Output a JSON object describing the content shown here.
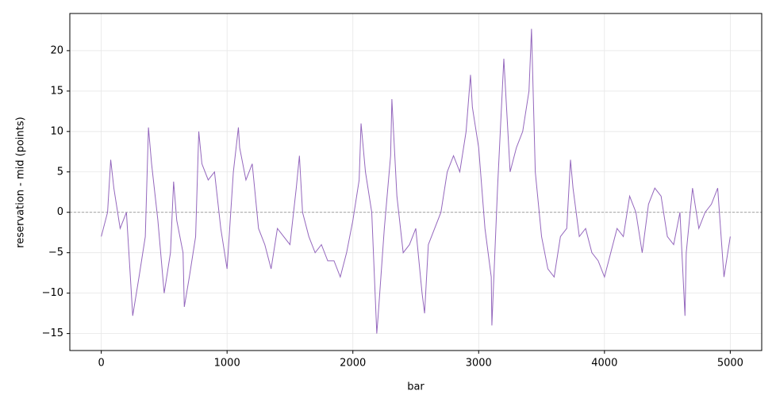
{
  "chart_data": {
    "type": "line",
    "xlabel": "bar",
    "ylabel": "reservation - mid (points)",
    "x": [
      0,
      50,
      75,
      100,
      150,
      200,
      250,
      300,
      350,
      375,
      400,
      450,
      500,
      550,
      575,
      600,
      650,
      660,
      700,
      750,
      775,
      800,
      850,
      900,
      950,
      1000,
      1050,
      1090,
      1100,
      1150,
      1200,
      1250,
      1300,
      1350,
      1400,
      1450,
      1500,
      1550,
      1575,
      1600,
      1650,
      1700,
      1750,
      1800,
      1850,
      1900,
      1950,
      2000,
      2050,
      2065,
      2100,
      2150,
      2190,
      2200,
      2250,
      2300,
      2310,
      2350,
      2400,
      2450,
      2500,
      2550,
      2570,
      2600,
      2650,
      2700,
      2750,
      2800,
      2850,
      2900,
      2935,
      2950,
      3000,
      3050,
      3100,
      3105,
      3150,
      3200,
      3250,
      3300,
      3350,
      3400,
      3420,
      3450,
      3500,
      3550,
      3600,
      3650,
      3700,
      3730,
      3750,
      3800,
      3850,
      3900,
      3950,
      4000,
      4050,
      4100,
      4150,
      4200,
      4250,
      4300,
      4350,
      4400,
      4450,
      4500,
      4550,
      4600,
      4640,
      4650,
      4700,
      4750,
      4800,
      4850,
      4900,
      4950,
      5000
    ],
    "series": [
      {
        "color": "#9467bd",
        "values": [
          -3,
          0,
          6.5,
          3,
          -2,
          0,
          -12.8,
          -8,
          -3,
          10.5,
          6,
          -1,
          -10,
          -5,
          3.8,
          -1,
          -5,
          -11.7,
          -8,
          -3,
          10,
          6,
          4,
          5,
          -2,
          -7,
          5,
          10.5,
          8,
          4,
          6,
          -2,
          -4,
          -7,
          -2,
          -3,
          -4,
          3,
          7,
          0,
          -3,
          -5,
          -4,
          -6,
          -6,
          -8,
          -5,
          -1,
          4,
          11,
          5,
          0,
          -15,
          -13,
          -2,
          7,
          14,
          2,
          -5,
          -4,
          -2,
          -10,
          -12.5,
          -4,
          -2,
          0,
          5,
          7,
          5,
          10,
          17,
          13,
          8,
          -2,
          -8,
          -14,
          3,
          19,
          5,
          8,
          10,
          15,
          22.7,
          5,
          -3,
          -7,
          -8,
          -3,
          -2,
          6.5,
          3,
          -3,
          -2,
          -5,
          -6,
          -8,
          -5,
          -2,
          -3,
          2,
          0,
          -5,
          1,
          3,
          2,
          -3,
          -4,
          0,
          -12.8,
          -5,
          3,
          -2,
          0,
          1,
          3,
          -8,
          -3
        ]
      }
    ],
    "xlim": [
      -250,
      5250
    ],
    "ylim": [
      -17.1,
      24.6
    ],
    "xticks": [
      0,
      1000,
      2000,
      3000,
      4000,
      5000
    ],
    "yticks": [
      {
        "value": -15,
        "label": "−15"
      },
      {
        "value": -10,
        "label": "−10"
      },
      {
        "value": -5,
        "label": "−5"
      },
      0,
      5,
      10,
      15,
      20
    ],
    "hline": 0,
    "grid": true
  }
}
